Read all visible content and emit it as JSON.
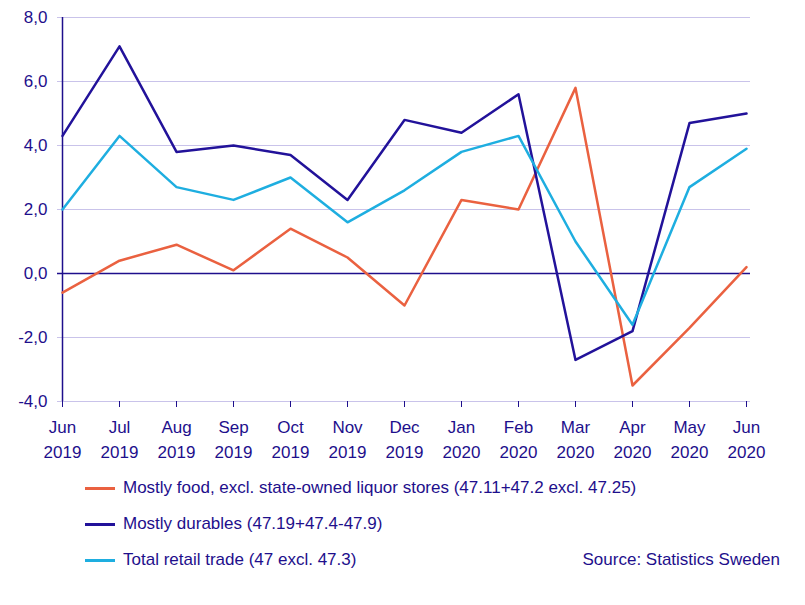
{
  "chart_data": {
    "type": "line",
    "categories": [
      "Jun 2019",
      "Jul 2019",
      "Aug 2019",
      "Sep 2019",
      "Oct 2019",
      "Nov 2019",
      "Dec 2019",
      "Jan 2020",
      "Feb 2020",
      "Mar 2020",
      "Apr 2020",
      "May 2020",
      "Jun 2020"
    ],
    "series": [
      {
        "name": "Mostly food, excl. state-owned liquor stores (47.11+47.2 excl. 47.25)",
        "color": "#ea6140",
        "values": [
          -0.6,
          0.4,
          0.9,
          0.1,
          1.4,
          0.5,
          -1.0,
          2.3,
          2.0,
          5.8,
          -3.5,
          -1.7,
          0.2
        ]
      },
      {
        "name": "Mostly durables (47.19+47.4-47.9)",
        "color": "#22129a",
        "values": [
          4.3,
          7.1,
          3.8,
          4.0,
          3.7,
          2.3,
          4.8,
          4.4,
          5.6,
          -2.7,
          -1.8,
          4.7,
          5.0
        ]
      },
      {
        "name": "Total retail trade (47 excl. 47.3)",
        "color": "#1eaee0",
        "values": [
          2.0,
          4.3,
          2.7,
          2.3,
          3.0,
          1.6,
          2.6,
          3.8,
          4.3,
          1.0,
          -1.6,
          2.7,
          3.9
        ]
      }
    ],
    "ylim": [
      -4,
      8
    ],
    "yticks": [
      {
        "value": -4,
        "label": "-4,0"
      },
      {
        "value": -2,
        "label": "-2,0"
      },
      {
        "value": 0,
        "label": "0,0"
      },
      {
        "value": 2,
        "label": "2,0"
      },
      {
        "value": 4,
        "label": "4,0"
      },
      {
        "value": 6,
        "label": "6,0"
      },
      {
        "value": 8,
        "label": "8,0"
      }
    ],
    "grid": true,
    "legend": "bottom",
    "source": "Source: Statistics Sweden"
  }
}
